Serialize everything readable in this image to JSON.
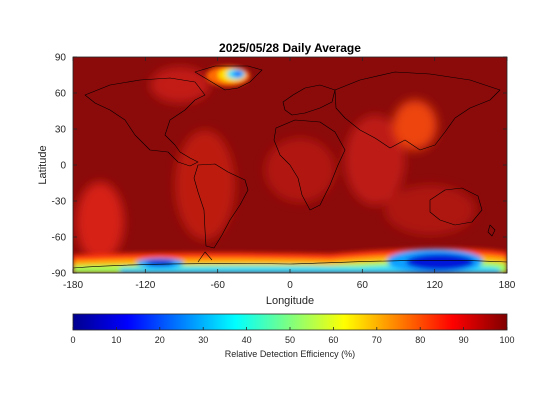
{
  "title": "2025/05/28 Daily Average",
  "map": {
    "xlabel": "Longitude",
    "ylabel": "Latitude",
    "xlim": [
      -180,
      180
    ],
    "ylim": [
      -90,
      90
    ],
    "xticks": [
      -180,
      -120,
      -60,
      0,
      60,
      120,
      180
    ],
    "yticks": [
      90,
      60,
      30,
      0,
      -30,
      -60,
      -90
    ],
    "background_color": "#8b0a0a"
  },
  "colorbar": {
    "label": "Relative Detection Efficiency (%)",
    "ticks": [
      0,
      10,
      20,
      30,
      40,
      50,
      60,
      70,
      80,
      90,
      100
    ],
    "colormap": "jet",
    "range": [
      0,
      100
    ]
  }
}
